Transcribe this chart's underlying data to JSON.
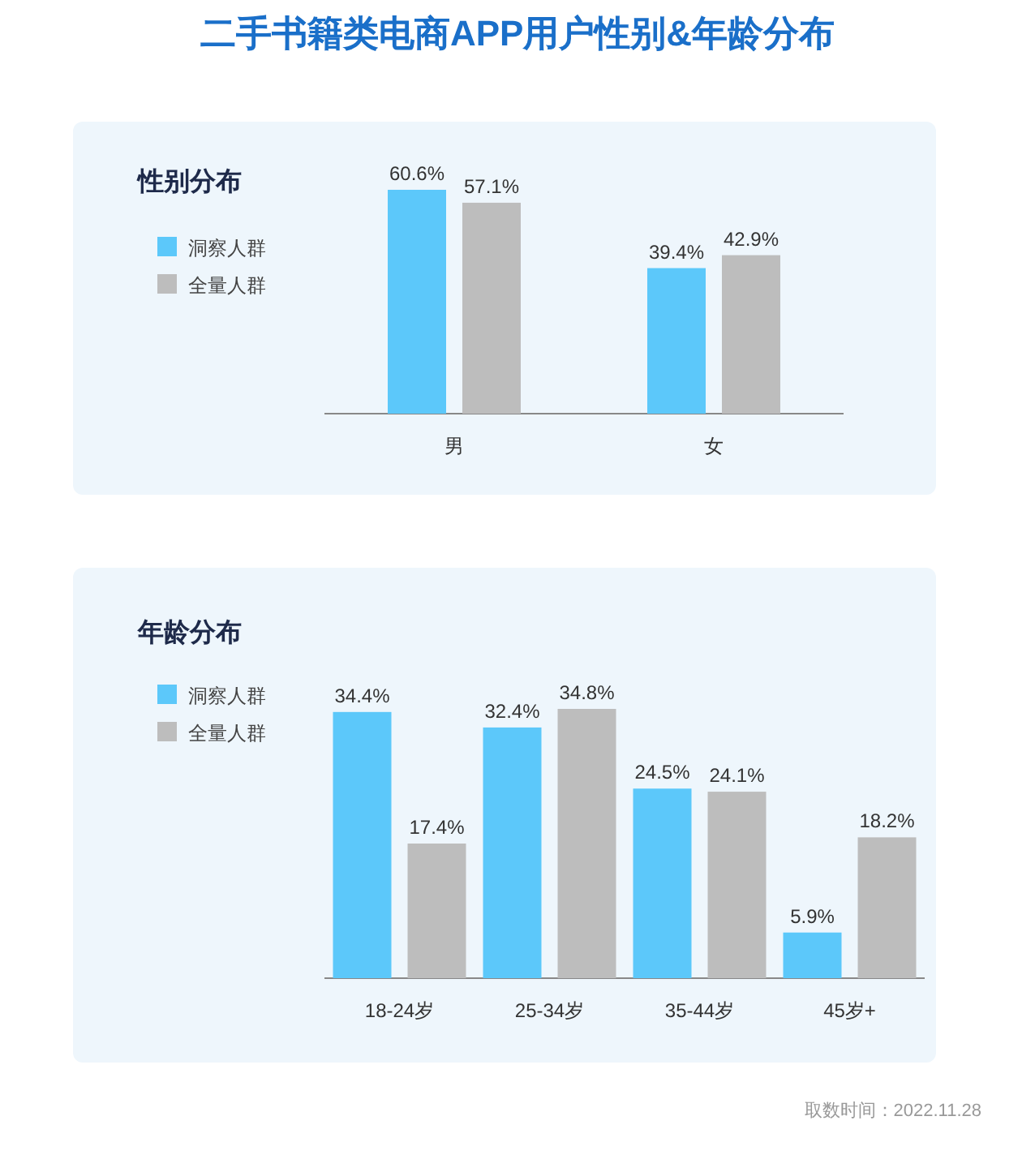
{
  "chart_data": [
    {
      "type": "other",
      "title": "二手书籍类电商APP用户性别&年龄分布"
    },
    {
      "type": "bar",
      "title": "性别分布",
      "categories": [
        "男",
        "女"
      ],
      "legend": "left",
      "series": [
        {
          "name": "洞察人群",
          "color": "#5cc8fa",
          "values": [
            60.6,
            39.4
          ],
          "value_labels": [
            "60.6%",
            "39.4%"
          ]
        },
        {
          "name": "全量人群",
          "color": "#bdbdbd",
          "values": [
            57.1,
            42.9
          ],
          "value_labels": [
            "57.1%",
            "42.9%"
          ]
        }
      ]
    },
    {
      "type": "bar",
      "title": "年龄分布",
      "categories": [
        "18-24岁",
        "25-34岁",
        "35-44岁",
        "45岁+"
      ],
      "legend": "left",
      "series": [
        {
          "name": "洞察人群",
          "color": "#5cc8fa",
          "values": [
            34.4,
            32.4,
            24.5,
            5.9
          ],
          "value_labels": [
            "34.4%",
            "32.4%",
            "24.5%",
            "5.9%"
          ]
        },
        {
          "name": "全量人群",
          "color": "#bdbdbd",
          "values": [
            17.4,
            34.8,
            24.1,
            18.2
          ],
          "value_labels": [
            "17.4%",
            "34.8%",
            "24.1%",
            "18.2%"
          ]
        }
      ],
      "annotations": [
        "取数时间：2022.11.28"
      ]
    }
  ]
}
